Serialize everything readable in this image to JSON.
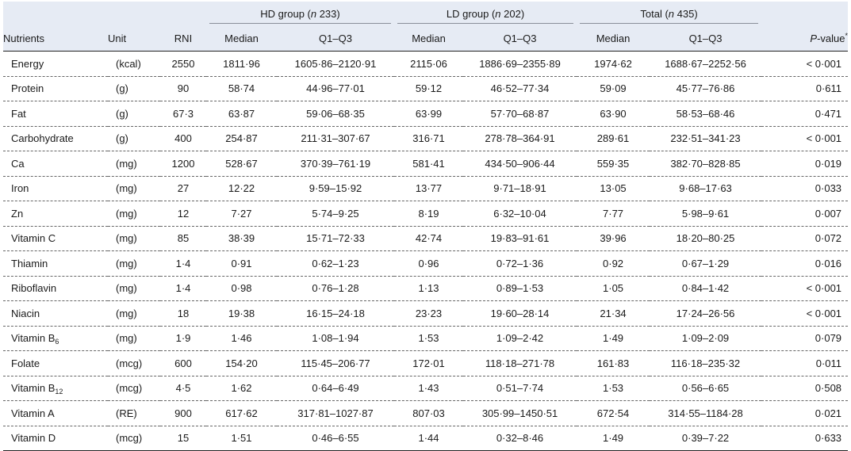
{
  "header": {
    "groups": [
      {
        "n_prefix": "HD group (",
        "n_italic": "n",
        "n_suffix": " 233)"
      },
      {
        "n_prefix": "LD group (",
        "n_italic": "n",
        "n_suffix": " 202)"
      },
      {
        "n_prefix": "Total (",
        "n_italic": "n",
        "n_suffix": " 435)"
      }
    ],
    "nutrients": "Nutrients",
    "unit": "Unit",
    "rni": "RNI",
    "median": "Median",
    "q": "Q1–Q3",
    "p_italic": "P",
    "p_rest": "-value",
    "p_mark": "*"
  },
  "rows": [
    {
      "name": "Energy",
      "sub": "",
      "unit": "(kcal)",
      "rni": "2550",
      "hd_med": "1811·96",
      "hd_q": "1605·86–2120·91",
      "ld_med": "2115·06",
      "ld_q": "1886·69–2355·89",
      "t_med": "1974·62",
      "t_q": "1688·67–2252·56",
      "p": "< 0·001"
    },
    {
      "name": "Protein",
      "sub": "",
      "unit": "(g)",
      "rni": "90",
      "hd_med": "58·74",
      "hd_q": "44·96–77·01",
      "ld_med": "59·12",
      "ld_q": "46·52–77·34",
      "t_med": "59·09",
      "t_q": "45·77–76·86",
      "p": "0·611"
    },
    {
      "name": "Fat",
      "sub": "",
      "unit": "(g)",
      "rni": "67·3",
      "hd_med": "63·87",
      "hd_q": "59·06–68·35",
      "ld_med": "63·99",
      "ld_q": "57·70–68·87",
      "t_med": "63·90",
      "t_q": "58·53–68·46",
      "p": "0·471"
    },
    {
      "name": "Carbohydrate",
      "sub": "",
      "unit": "(g)",
      "rni": "400",
      "hd_med": "254·87",
      "hd_q": "211·31–307·67",
      "ld_med": "316·71",
      "ld_q": "278·78–364·91",
      "t_med": "289·61",
      "t_q": "232·51–341·23",
      "p": "< 0·001"
    },
    {
      "name": "Ca",
      "sub": "",
      "unit": "(mg)",
      "rni": "1200",
      "hd_med": "528·67",
      "hd_q": "370·39–761·19",
      "ld_med": "581·41",
      "ld_q": "434·50–906·44",
      "t_med": "559·35",
      "t_q": "382·70–828·85",
      "p": "0·019"
    },
    {
      "name": "Iron",
      "sub": "",
      "unit": "(mg)",
      "rni": "27",
      "hd_med": "12·22",
      "hd_q": "9·59–15·92",
      "ld_med": "13·77",
      "ld_q": "9·71–18·91",
      "t_med": "13·05",
      "t_q": "9·68–17·63",
      "p": "0·033"
    },
    {
      "name": "Zn",
      "sub": "",
      "unit": "(mg)",
      "rni": "12",
      "hd_med": "7·27",
      "hd_q": "5·74–9·25",
      "ld_med": "8·19",
      "ld_q": "6·32–10·04",
      "t_med": "7·77",
      "t_q": "5·98–9·61",
      "p": "0·007"
    },
    {
      "name": "Vitamin C",
      "sub": "",
      "unit": "(mg)",
      "rni": "85",
      "hd_med": "38·39",
      "hd_q": "15·71–72·33",
      "ld_med": "42·74",
      "ld_q": "19·83–91·61",
      "t_med": "39·96",
      "t_q": "18·20–80·25",
      "p": "0·072"
    },
    {
      "name": "Thiamin",
      "sub": "",
      "unit": "(mg)",
      "rni": "1·4",
      "hd_med": "0·91",
      "hd_q": "0·62–1·23",
      "ld_med": "0·96",
      "ld_q": "0·72–1·36",
      "t_med": "0·92",
      "t_q": "0·67–1·29",
      "p": "0·016"
    },
    {
      "name": "Riboflavin",
      "sub": "",
      "unit": "(mg)",
      "rni": "1·4",
      "hd_med": "0·98",
      "hd_q": "0·76–1·28",
      "ld_med": "1·13",
      "ld_q": "0·89–1·53",
      "t_med": "1·05",
      "t_q": "0·84–1·42",
      "p": "< 0·001"
    },
    {
      "name": "Niacin",
      "sub": "",
      "unit": "(mg)",
      "rni": "18",
      "hd_med": "19·38",
      "hd_q": "16·15–24·18",
      "ld_med": "23·23",
      "ld_q": "19·60–28·14",
      "t_med": "21·34",
      "t_q": "17·24–26·56",
      "p": "< 0·001"
    },
    {
      "name": "Vitamin B",
      "sub": "6",
      "unit": "(mg)",
      "rni": "1·9",
      "hd_med": "1·46",
      "hd_q": "1·08–1·94",
      "ld_med": "1·53",
      "ld_q": "1·09–2·42",
      "t_med": "1·49",
      "t_q": "1·09–2·09",
      "p": "0·079"
    },
    {
      "name": "Folate",
      "sub": "",
      "unit": "(mcg)",
      "rni": "600",
      "hd_med": "154·20",
      "hd_q": "115·45–206·77",
      "ld_med": "172·01",
      "ld_q": "118·18–271·78",
      "t_med": "161·83",
      "t_q": "116·18–235·32",
      "p": "0·011"
    },
    {
      "name": "Vitamin B",
      "sub": "12",
      "unit": "(mcg)",
      "rni": "4·5",
      "hd_med": "1·62",
      "hd_q": "0·64–6·49",
      "ld_med": "1·43",
      "ld_q": "0·51–7·74",
      "t_med": "1·53",
      "t_q": "0·56–6·65",
      "p": "0·508"
    },
    {
      "name": "Vitamin A",
      "sub": "",
      "unit": "(RE)",
      "rni": "900",
      "hd_med": "617·62",
      "hd_q": "317·81–1027·87",
      "ld_med": "807·03",
      "ld_q": "305·99–1450·51",
      "t_med": "672·54",
      "t_q": "314·55–1184·28",
      "p": "0·021"
    },
    {
      "name": "Vitamin D",
      "sub": "",
      "unit": "(mcg)",
      "rni": "15",
      "hd_med": "1·51",
      "hd_q": "0·46–6·55",
      "ld_med": "1·44",
      "ld_q": "0·32–8·46",
      "t_med": "1·49",
      "t_q": "0·39–7·22",
      "p": "0·633"
    }
  ]
}
